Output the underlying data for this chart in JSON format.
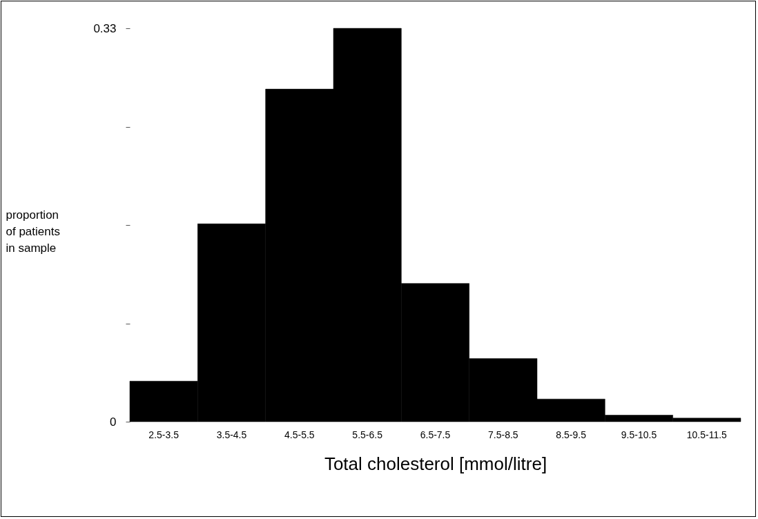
{
  "chart_data": {
    "type": "bar",
    "xlabel": "Total cholesterol [mmol/litre]",
    "ylabel": "proportion of patients in sample",
    "categories": [
      "2.5-3.5",
      "3.5-4.5",
      "4.5-5.5",
      "5.5-6.5",
      "6.5-7.5",
      "7.5-8.5",
      "8.5-9.5",
      "9.5-10.5",
      "10.5-11.5"
    ],
    "values": [
      0.034,
      0.166,
      0.279,
      0.33,
      0.116,
      0.053,
      0.019,
      0.0055,
      0.003
    ],
    "color": "#000000",
    "ylim": [
      0,
      0.33
    ],
    "yticks": [
      0,
      {
        "value": 0.0825,
        "label": null
      },
      {
        "value": 0.165,
        "label": null
      },
      {
        "value": 0.2475,
        "label": null
      },
      0.33
    ],
    "grid": false
  }
}
